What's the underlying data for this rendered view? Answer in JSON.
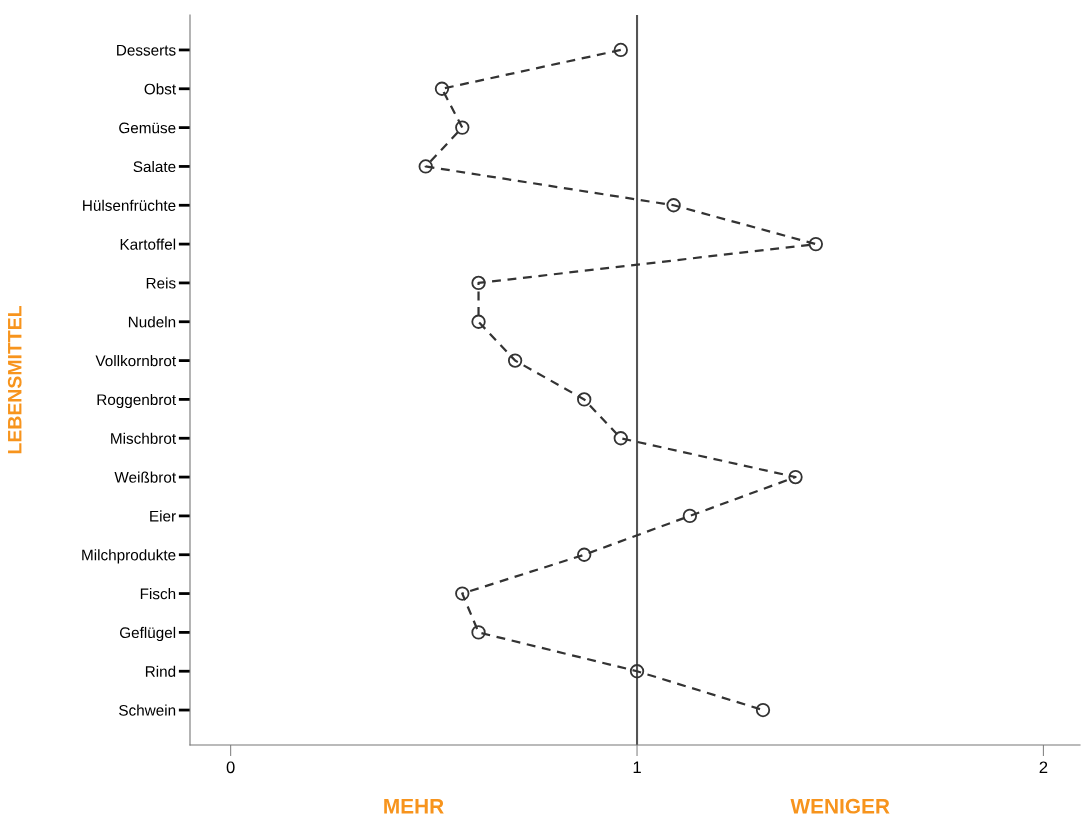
{
  "chart_data": {
    "type": "line",
    "ylabel": "LEBENSMITTEL",
    "categories": [
      "Desserts",
      "Obst",
      "Gemüse",
      "Salate",
      "Hülsenfrüchte",
      "Kartoffel",
      "Reis",
      "Nudeln",
      "Vollkornbrot",
      "Roggenbrot",
      "Mischbrot",
      "Weißbrot",
      "Eier",
      "Milchprodukte",
      "Fisch",
      "Geflügel",
      "Rind",
      "Schwein"
    ],
    "orientation": "horizontal",
    "series": [
      {
        "color": "#333333",
        "values": [
          0.96,
          0.52,
          0.57,
          0.48,
          1.09,
          1.44,
          0.61,
          0.61,
          0.7,
          0.87,
          0.96,
          1.39,
          1.13,
          0.87,
          0.57,
          0.61,
          1.0,
          1.31
        ]
      }
    ],
    "xlim": [
      -0.1,
      2.09
    ],
    "xticks": [
      0,
      1,
      2
    ],
    "ref_lines": [
      {
        "axis": "x",
        "value": 1,
        "color": "#555555",
        "line_style": "solid"
      }
    ],
    "annotations": [
      "MEHR",
      "WENIGER"
    ],
    "marker": "circle",
    "line_style": "dashed",
    "grid": false,
    "legend": false
  }
}
